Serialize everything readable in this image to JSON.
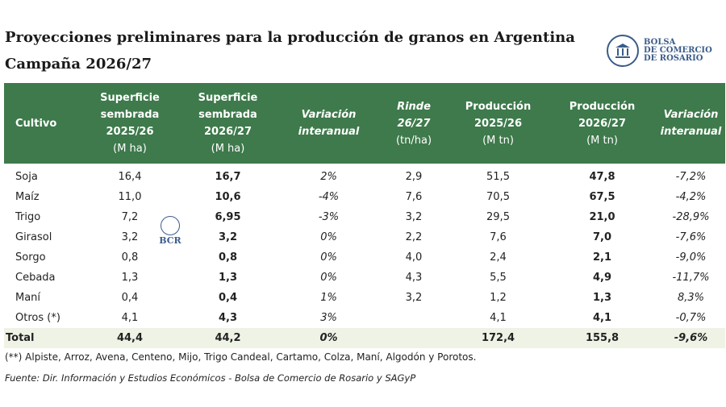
{
  "title": {
    "line1": "Proyecciones preliminares para la producción de granos en Argentina",
    "line2": "Campaña 2026/27"
  },
  "logo": {
    "line1": "BOLSA",
    "line2": "DE COMERCIO",
    "line3": "DE ROSARIO",
    "color": "#3b5b8a"
  },
  "watermark": {
    "text": "BCR"
  },
  "header": {
    "cultivo": "Cultivo",
    "sup_2526": [
      "Superficie",
      "sembrada",
      "2025/26"
    ],
    "sup_2526_unit": "(M ha)",
    "sup_2627": [
      "Superficie",
      "sembrada",
      "2026/27"
    ],
    "sup_2627_unit": "(M ha)",
    "var_sup": [
      "Variación",
      "interanual"
    ],
    "rinde": [
      "Rinde",
      "26/27"
    ],
    "rinde_unit": "(tn/ha)",
    "prod_2526": [
      "Producción",
      "2025/26"
    ],
    "prod_2526_unit": "(M tn)",
    "prod_2627": [
      "Producción",
      "2026/27"
    ],
    "prod_2627_unit": "(M tn)",
    "var_prod": [
      "Variación",
      "interanual"
    ],
    "bg_color": "#3e7a4b"
  },
  "rows": [
    {
      "cultivo": "Soja",
      "sup2526": "16,4",
      "sup2627": "16,7",
      "varsup": "2%",
      "rinde": "2,9",
      "prod2526": "51,5",
      "prod2627": "47,8",
      "varprod": "-7,2%"
    },
    {
      "cultivo": "Maíz",
      "sup2526": "11,0",
      "sup2627": "10,6",
      "varsup": "-4%",
      "rinde": "7,6",
      "prod2526": "70,5",
      "prod2627": "67,5",
      "varprod": "-4,2%"
    },
    {
      "cultivo": "Trigo",
      "sup2526": "7,2",
      "sup2627": "6,95",
      "varsup": "-3%",
      "rinde": "3,2",
      "prod2526": "29,5",
      "prod2627": "21,0",
      "varprod": "-28,9%"
    },
    {
      "cultivo": "Girasol",
      "sup2526": "3,2",
      "sup2627": "3,2",
      "varsup": "0%",
      "rinde": "2,2",
      "prod2526": "7,6",
      "prod2627": "7,0",
      "varprod": "-7,6%"
    },
    {
      "cultivo": "Sorgo",
      "sup2526": "0,8",
      "sup2627": "0,8",
      "varsup": "0%",
      "rinde": "4,0",
      "prod2526": "2,4",
      "prod2627": "2,1",
      "varprod": "-9,0%"
    },
    {
      "cultivo": "Cebada",
      "sup2526": "1,3",
      "sup2627": "1,3",
      "varsup": "0%",
      "rinde": "4,3",
      "prod2526": "5,5",
      "prod2627": "4,9",
      "varprod": "-11,7%"
    },
    {
      "cultivo": "Maní",
      "sup2526": "0,4",
      "sup2627": "0,4",
      "varsup": "1%",
      "rinde": "3,2",
      "prod2526": "1,2",
      "prod2627": "1,3",
      "varprod": "8,3%"
    },
    {
      "cultivo": "Otros (*)",
      "sup2526": "4,1",
      "sup2627": "4,3",
      "varsup": "3%",
      "rinde": "",
      "prod2526": "4,1",
      "prod2627": "4,1",
      "varprod": "-0,7%"
    }
  ],
  "total": {
    "cultivo": "Total",
    "sup2526": "44,4",
    "sup2627": "44,2",
    "varsup": "0%",
    "rinde": "",
    "prod2526": "172,4",
    "prod2627": "155,8",
    "varprod": "-9,6%"
  },
  "note": "(**) Alpiste, Arroz, Avena, Centeno, Mijo, Trigo Candeal, Cartamo, Colza, Maní, Algodón y Porotos.",
  "source": "Fuente: Dir. Información y Estudios Económicos - Bolsa de Comercio de Rosario y SAGyP"
}
